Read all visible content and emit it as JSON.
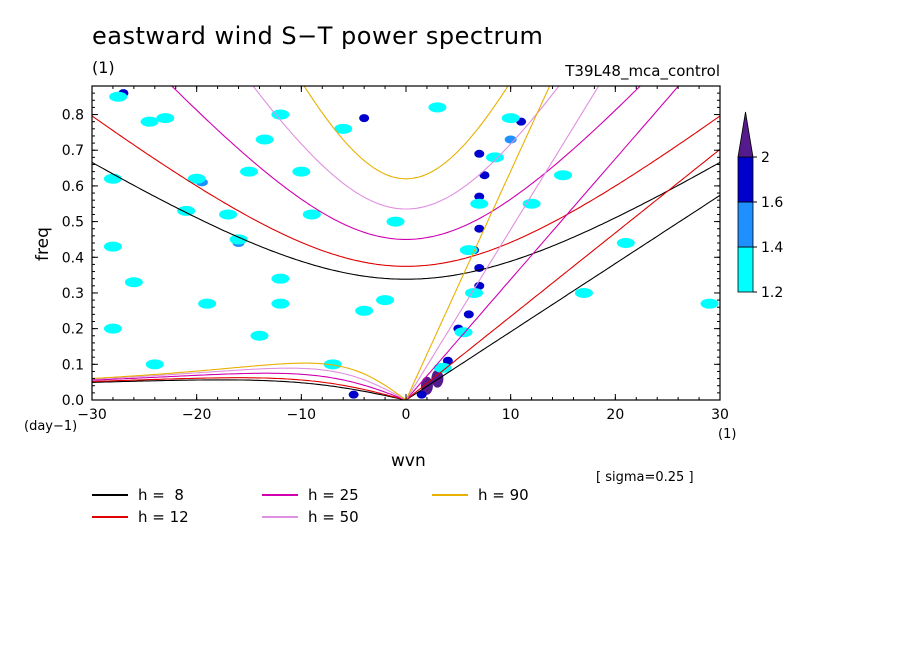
{
  "title": "eastward wind S−T power spectrum",
  "title_unit": "(1)",
  "run_label": "T39L48_mca_control",
  "sigma_label": "[ sigma=0.25 ]",
  "chart_data": {
    "type": "heatmap",
    "xlabel": "wvn",
    "ylabel": "freq",
    "x_unit": "(1)",
    "y_unit": "(day−1)",
    "xlim": [
      -30,
      30
    ],
    "ylim": [
      0.0,
      0.88
    ],
    "x_ticks": [
      -30,
      -20,
      -10,
      0,
      10,
      20,
      30
    ],
    "x_tick_labels": [
      "−30",
      "−20",
      "−10",
      "0",
      "10",
      "20",
      "30"
    ],
    "y_ticks": [
      0.0,
      0.1,
      0.2,
      0.3,
      0.4,
      0.5,
      0.6,
      0.7,
      0.8
    ],
    "y_tick_labels": [
      "0.0",
      "0.1",
      "0.2",
      "0.3",
      "0.4",
      "0.5",
      "0.6",
      "0.7",
      "0.8"
    ],
    "colorbar": {
      "levels": [
        1.2,
        1.4,
        1.6,
        2
      ],
      "level_labels": [
        "1.2",
        "1.4",
        "1.6",
        "2"
      ],
      "colors": [
        "#00ffff",
        "#1e90ff",
        "#0000cd",
        "#551a8b"
      ]
    },
    "dispersion_curves": [
      {
        "name": "h =  8",
        "h": 8,
        "color": "#000000"
      },
      {
        "name": "h = 12",
        "h": 12,
        "color": "#e00000"
      },
      {
        "name": "h = 25",
        "h": 25,
        "color": "#d000b0"
      },
      {
        "name": "h = 50",
        "h": 50,
        "color": "#e090e0"
      },
      {
        "name": "h = 90",
        "h": 90,
        "color": "#e8b000"
      }
    ],
    "contour_regions": [
      {
        "x": 3.0,
        "y": 0.06,
        "level": 2
      },
      {
        "x": 2.0,
        "y": 0.04,
        "level": 2
      },
      {
        "x": 4.0,
        "y": 0.11,
        "level": 1.6
      },
      {
        "x": 1.5,
        "y": 0.015,
        "level": 1.6
      },
      {
        "x": -5.0,
        "y": 0.015,
        "level": 1.6
      },
      {
        "x": 5.0,
        "y": 0.2,
        "level": 1.6
      },
      {
        "x": 6.0,
        "y": 0.24,
        "level": 1.6
      },
      {
        "x": 7.0,
        "y": 0.32,
        "level": 1.6
      },
      {
        "x": 7.0,
        "y": 0.37,
        "level": 1.6
      },
      {
        "x": 6.5,
        "y": 0.42,
        "level": 1.6
      },
      {
        "x": 7.0,
        "y": 0.48,
        "level": 1.6
      },
      {
        "x": 7.0,
        "y": 0.57,
        "level": 1.6
      },
      {
        "x": 7.5,
        "y": 0.63,
        "level": 1.6
      },
      {
        "x": 7.0,
        "y": 0.69,
        "level": 1.6
      },
      {
        "x": 11.0,
        "y": 0.78,
        "level": 1.6
      },
      {
        "x": -27.0,
        "y": 0.86,
        "level": 1.6
      },
      {
        "x": -4.0,
        "y": 0.79,
        "level": 1.6
      },
      {
        "x": -28.0,
        "y": 0.62,
        "level": 1.4
      },
      {
        "x": -19.5,
        "y": 0.61,
        "level": 1.4
      },
      {
        "x": -16.0,
        "y": 0.44,
        "level": 1.4
      },
      {
        "x": -23.0,
        "y": 0.79,
        "level": 1.4
      },
      {
        "x": 10.0,
        "y": 0.73,
        "level": 1.4
      },
      {
        "x": 3.5,
        "y": 0.09,
        "level": 1.2
      },
      {
        "x": 5.5,
        "y": 0.19,
        "level": 1.2
      },
      {
        "x": 6.5,
        "y": 0.3,
        "level": 1.2
      },
      {
        "x": 6.0,
        "y": 0.42,
        "level": 1.2
      },
      {
        "x": 7.0,
        "y": 0.55,
        "level": 1.2
      },
      {
        "x": 8.5,
        "y": 0.68,
        "level": 1.2
      },
      {
        "x": 10.0,
        "y": 0.79,
        "level": 1.2
      },
      {
        "x": -27.5,
        "y": 0.85,
        "level": 1.2
      },
      {
        "x": -23.0,
        "y": 0.79,
        "level": 1.2
      },
      {
        "x": -12.0,
        "y": 0.8,
        "level": 1.2
      },
      {
        "x": -24.5,
        "y": 0.78,
        "level": 1.2
      },
      {
        "x": -13.5,
        "y": 0.73,
        "level": 1.2
      },
      {
        "x": -6.0,
        "y": 0.76,
        "level": 1.2
      },
      {
        "x": -28.0,
        "y": 0.62,
        "level": 1.2
      },
      {
        "x": -20.0,
        "y": 0.62,
        "level": 1.2
      },
      {
        "x": -15.0,
        "y": 0.64,
        "level": 1.2
      },
      {
        "x": -10.0,
        "y": 0.64,
        "level": 1.2
      },
      {
        "x": -21.0,
        "y": 0.53,
        "level": 1.2
      },
      {
        "x": -17.0,
        "y": 0.52,
        "level": 1.2
      },
      {
        "x": -9.0,
        "y": 0.52,
        "level": 1.2
      },
      {
        "x": -16.0,
        "y": 0.45,
        "level": 1.2
      },
      {
        "x": -28.0,
        "y": 0.43,
        "level": 1.2
      },
      {
        "x": -12.0,
        "y": 0.34,
        "level": 1.2
      },
      {
        "x": -26.0,
        "y": 0.33,
        "level": 1.2
      },
      {
        "x": -19.0,
        "y": 0.27,
        "level": 1.2
      },
      {
        "x": -12.0,
        "y": 0.27,
        "level": 1.2
      },
      {
        "x": -4.0,
        "y": 0.25,
        "level": 1.2
      },
      {
        "x": -28.0,
        "y": 0.2,
        "level": 1.2
      },
      {
        "x": -14.0,
        "y": 0.18,
        "level": 1.2
      },
      {
        "x": -2.0,
        "y": 0.28,
        "level": 1.2
      },
      {
        "x": -24.0,
        "y": 0.1,
        "level": 1.2
      },
      {
        "x": -7.0,
        "y": 0.1,
        "level": 1.2
      },
      {
        "x": 12.0,
        "y": 0.55,
        "level": 1.2
      },
      {
        "x": 15.0,
        "y": 0.63,
        "level": 1.2
      },
      {
        "x": 21.0,
        "y": 0.44,
        "level": 1.2
      },
      {
        "x": 17.0,
        "y": 0.3,
        "level": 1.2
      },
      {
        "x": 29.0,
        "y": 0.27,
        "level": 1.2
      },
      {
        "x": 3.0,
        "y": 0.82,
        "level": 1.2
      },
      {
        "x": -1.0,
        "y": 0.5,
        "level": 1.2
      }
    ]
  },
  "legend": {
    "items": [
      {
        "label": "h =  8",
        "color": "#000000"
      },
      {
        "label": "h = 12",
        "color": "#e00000"
      },
      {
        "label": "h = 25",
        "color": "#d000b0"
      },
      {
        "label": "h = 50",
        "color": "#e090e0"
      },
      {
        "label": "h = 90",
        "color": "#e8b000"
      }
    ]
  }
}
